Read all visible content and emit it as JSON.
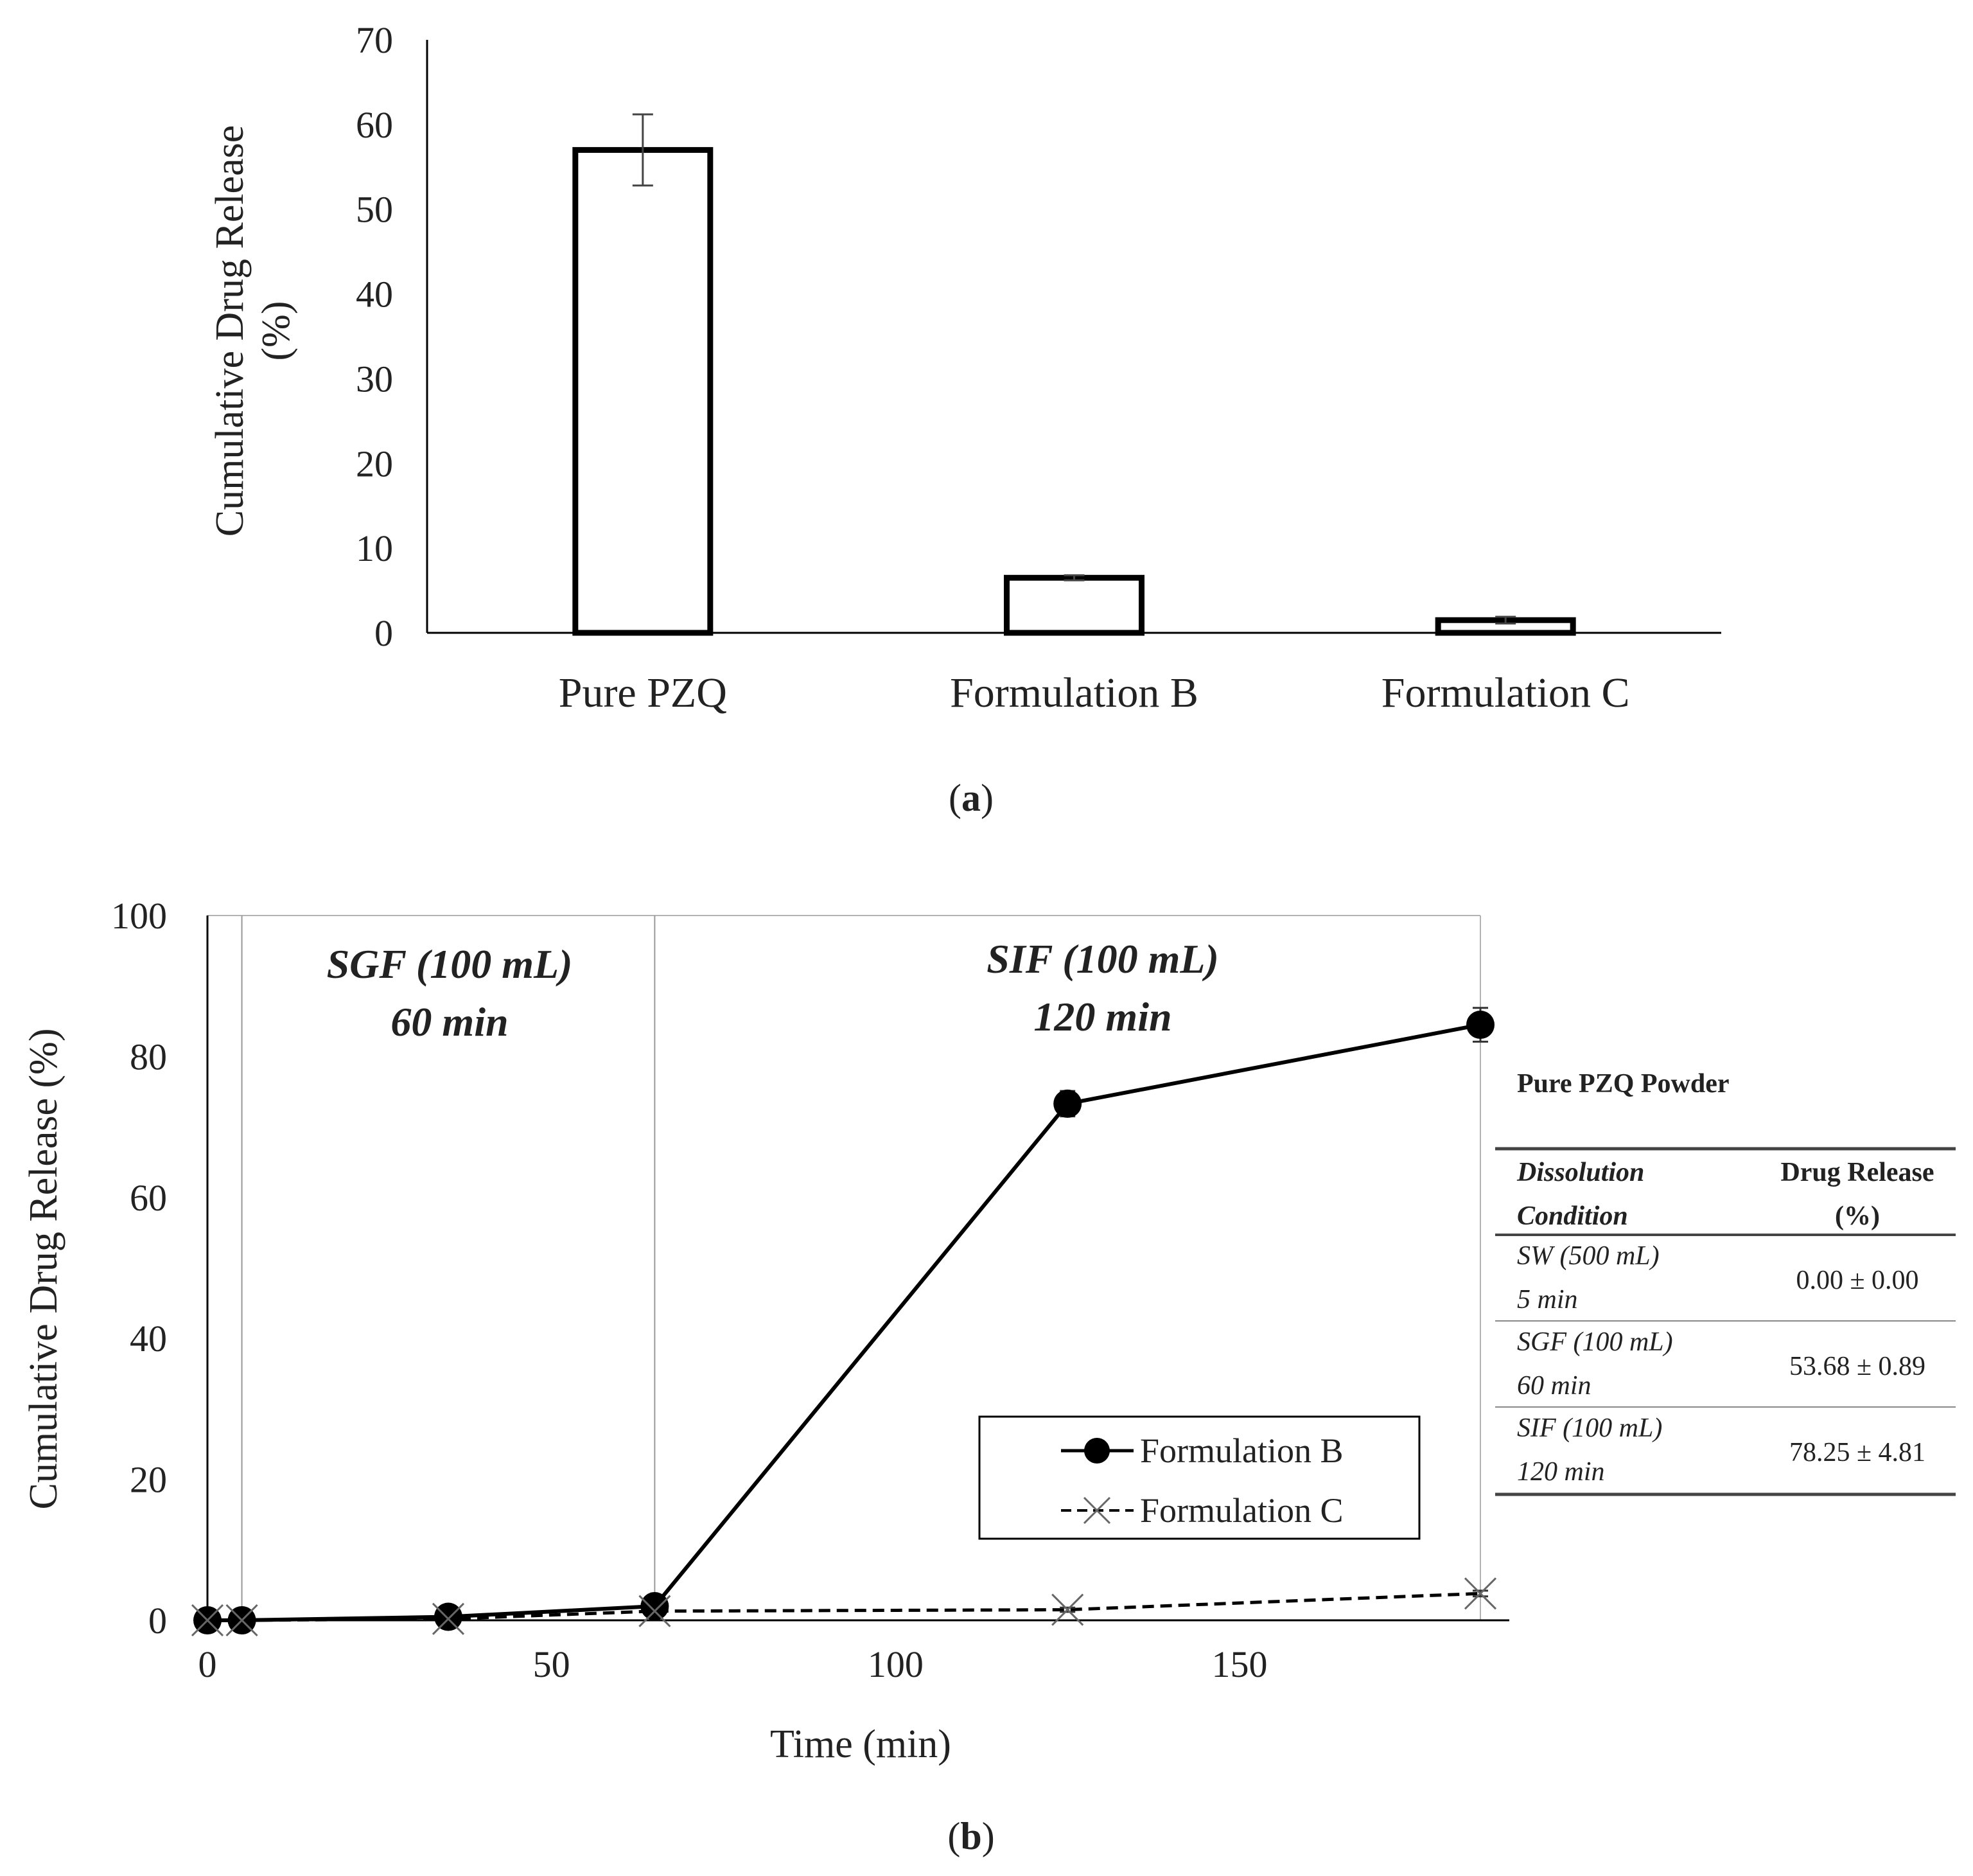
{
  "chart_data": [
    {
      "type": "bar",
      "panel_label": "a",
      "ylabel_line1": "Cumulative Drug Release",
      "ylabel_line2": "(%)",
      "xlabel": "",
      "ylim": [
        0,
        70
      ],
      "yticks": [
        0,
        10,
        20,
        30,
        40,
        50,
        60,
        70
      ],
      "categories": [
        "Pure PZQ",
        "Formulation B",
        "Formulation C"
      ],
      "values": [
        57,
        6.5,
        1.5
      ],
      "errors": [
        4.2,
        0.3,
        0.4
      ],
      "grid": false
    },
    {
      "type": "line",
      "panel_label": "b",
      "xlabel": "Time (min)",
      "ylabel": "Cumulative Drug Release (%)",
      "xlim": [
        0,
        185
      ],
      "ylim": [
        0,
        100
      ],
      "xticks": [
        0,
        50,
        100,
        150
      ],
      "yticks": [
        0,
        20,
        40,
        60,
        80,
        100
      ],
      "phase_dividers_x": [
        5,
        65
      ],
      "annotations": [
        {
          "line1": "SGF (100 mL)",
          "line2": "60 min",
          "x_center": 35
        },
        {
          "line1": "SIF (100 mL)",
          "line2": "120 min",
          "x_center": 125
        }
      ],
      "legend_position": "center-right",
      "series": [
        {
          "name": "Formulation B",
          "style": "solid",
          "marker": "circle",
          "x": [
            0,
            5,
            35,
            65,
            125,
            185
          ],
          "y": [
            0,
            0,
            0.5,
            2.0,
            73.3,
            84.5
          ],
          "err": [
            0,
            0,
            0.3,
            0.5,
            1.8,
            2.4
          ]
        },
        {
          "name": "Formulation C",
          "style": "dashed",
          "marker": "x",
          "x": [
            0,
            5,
            35,
            65,
            125,
            185
          ],
          "y": [
            0,
            0,
            0.2,
            1.3,
            1.5,
            3.8
          ],
          "err": [
            0,
            0,
            0.1,
            0.2,
            0.3,
            0.4
          ]
        }
      ]
    }
  ],
  "table": {
    "title": "Pure PZQ Powder",
    "headers": [
      {
        "line1": "Dissolution",
        "line2": "Condition"
      },
      {
        "line1": "Drug Release",
        "line2": "(%)"
      }
    ],
    "rows": [
      {
        "cond1": "SW (500 mL)",
        "cond2": "5 min",
        "value": "0.00 ± 0.00"
      },
      {
        "cond1": "SGF (100 mL)",
        "cond2": "60 min",
        "value": "53.68 ± 0.89"
      },
      {
        "cond1": "SIF (100 mL)",
        "cond2": "120 min",
        "value": "78.25 ± 4.81"
      }
    ]
  },
  "colors": {
    "ink": "#000000",
    "text": "#222222",
    "divider": "#999999"
  }
}
